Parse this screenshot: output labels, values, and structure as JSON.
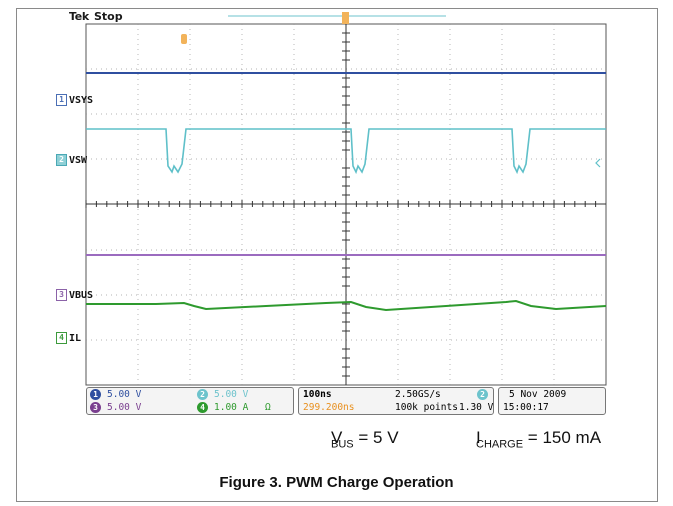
{
  "scope": {
    "brand": "Tek",
    "run_state": "Stop",
    "trigger_marker": "T"
  },
  "channels": [
    {
      "id": "1",
      "name": "VSYS",
      "color": "#2f4fa0"
    },
    {
      "id": "2",
      "name": "VSW",
      "color": "#6dc3cc"
    },
    {
      "id": "3",
      "name": "VBUS",
      "color": "#8b62a8"
    },
    {
      "id": "4",
      "name": "IL",
      "color": "#2e9a2e"
    }
  ],
  "status_bar": {
    "ch1": {
      "num": "1",
      "scale": "5.00 V"
    },
    "ch2": {
      "num": "2",
      "scale": "5.00 V"
    },
    "ch3": {
      "num": "3",
      "scale": "5.00 V"
    },
    "ch4": {
      "num": "4",
      "scale": "1.00 A",
      "suffix": "Ω"
    },
    "timebase": "100ns",
    "sample_rate": "2.50GS/s",
    "trigger_delay": "299.200ns",
    "record_length": "100k points",
    "trigger_source": "2",
    "trigger_slope": "ℱ",
    "trigger_level": "1.30 V",
    "date": "5 Nov 2009",
    "time": "15:00:17"
  },
  "conditions": {
    "vbus_label": "V",
    "vbus_sub": "BUS",
    "vbus_value": "= 5 V",
    "icharge_label": "I",
    "icharge_sub": "CHARGE",
    "icharge_value": "= 150 mA"
  },
  "caption": "Figure 3. PWM Charge Operation"
}
